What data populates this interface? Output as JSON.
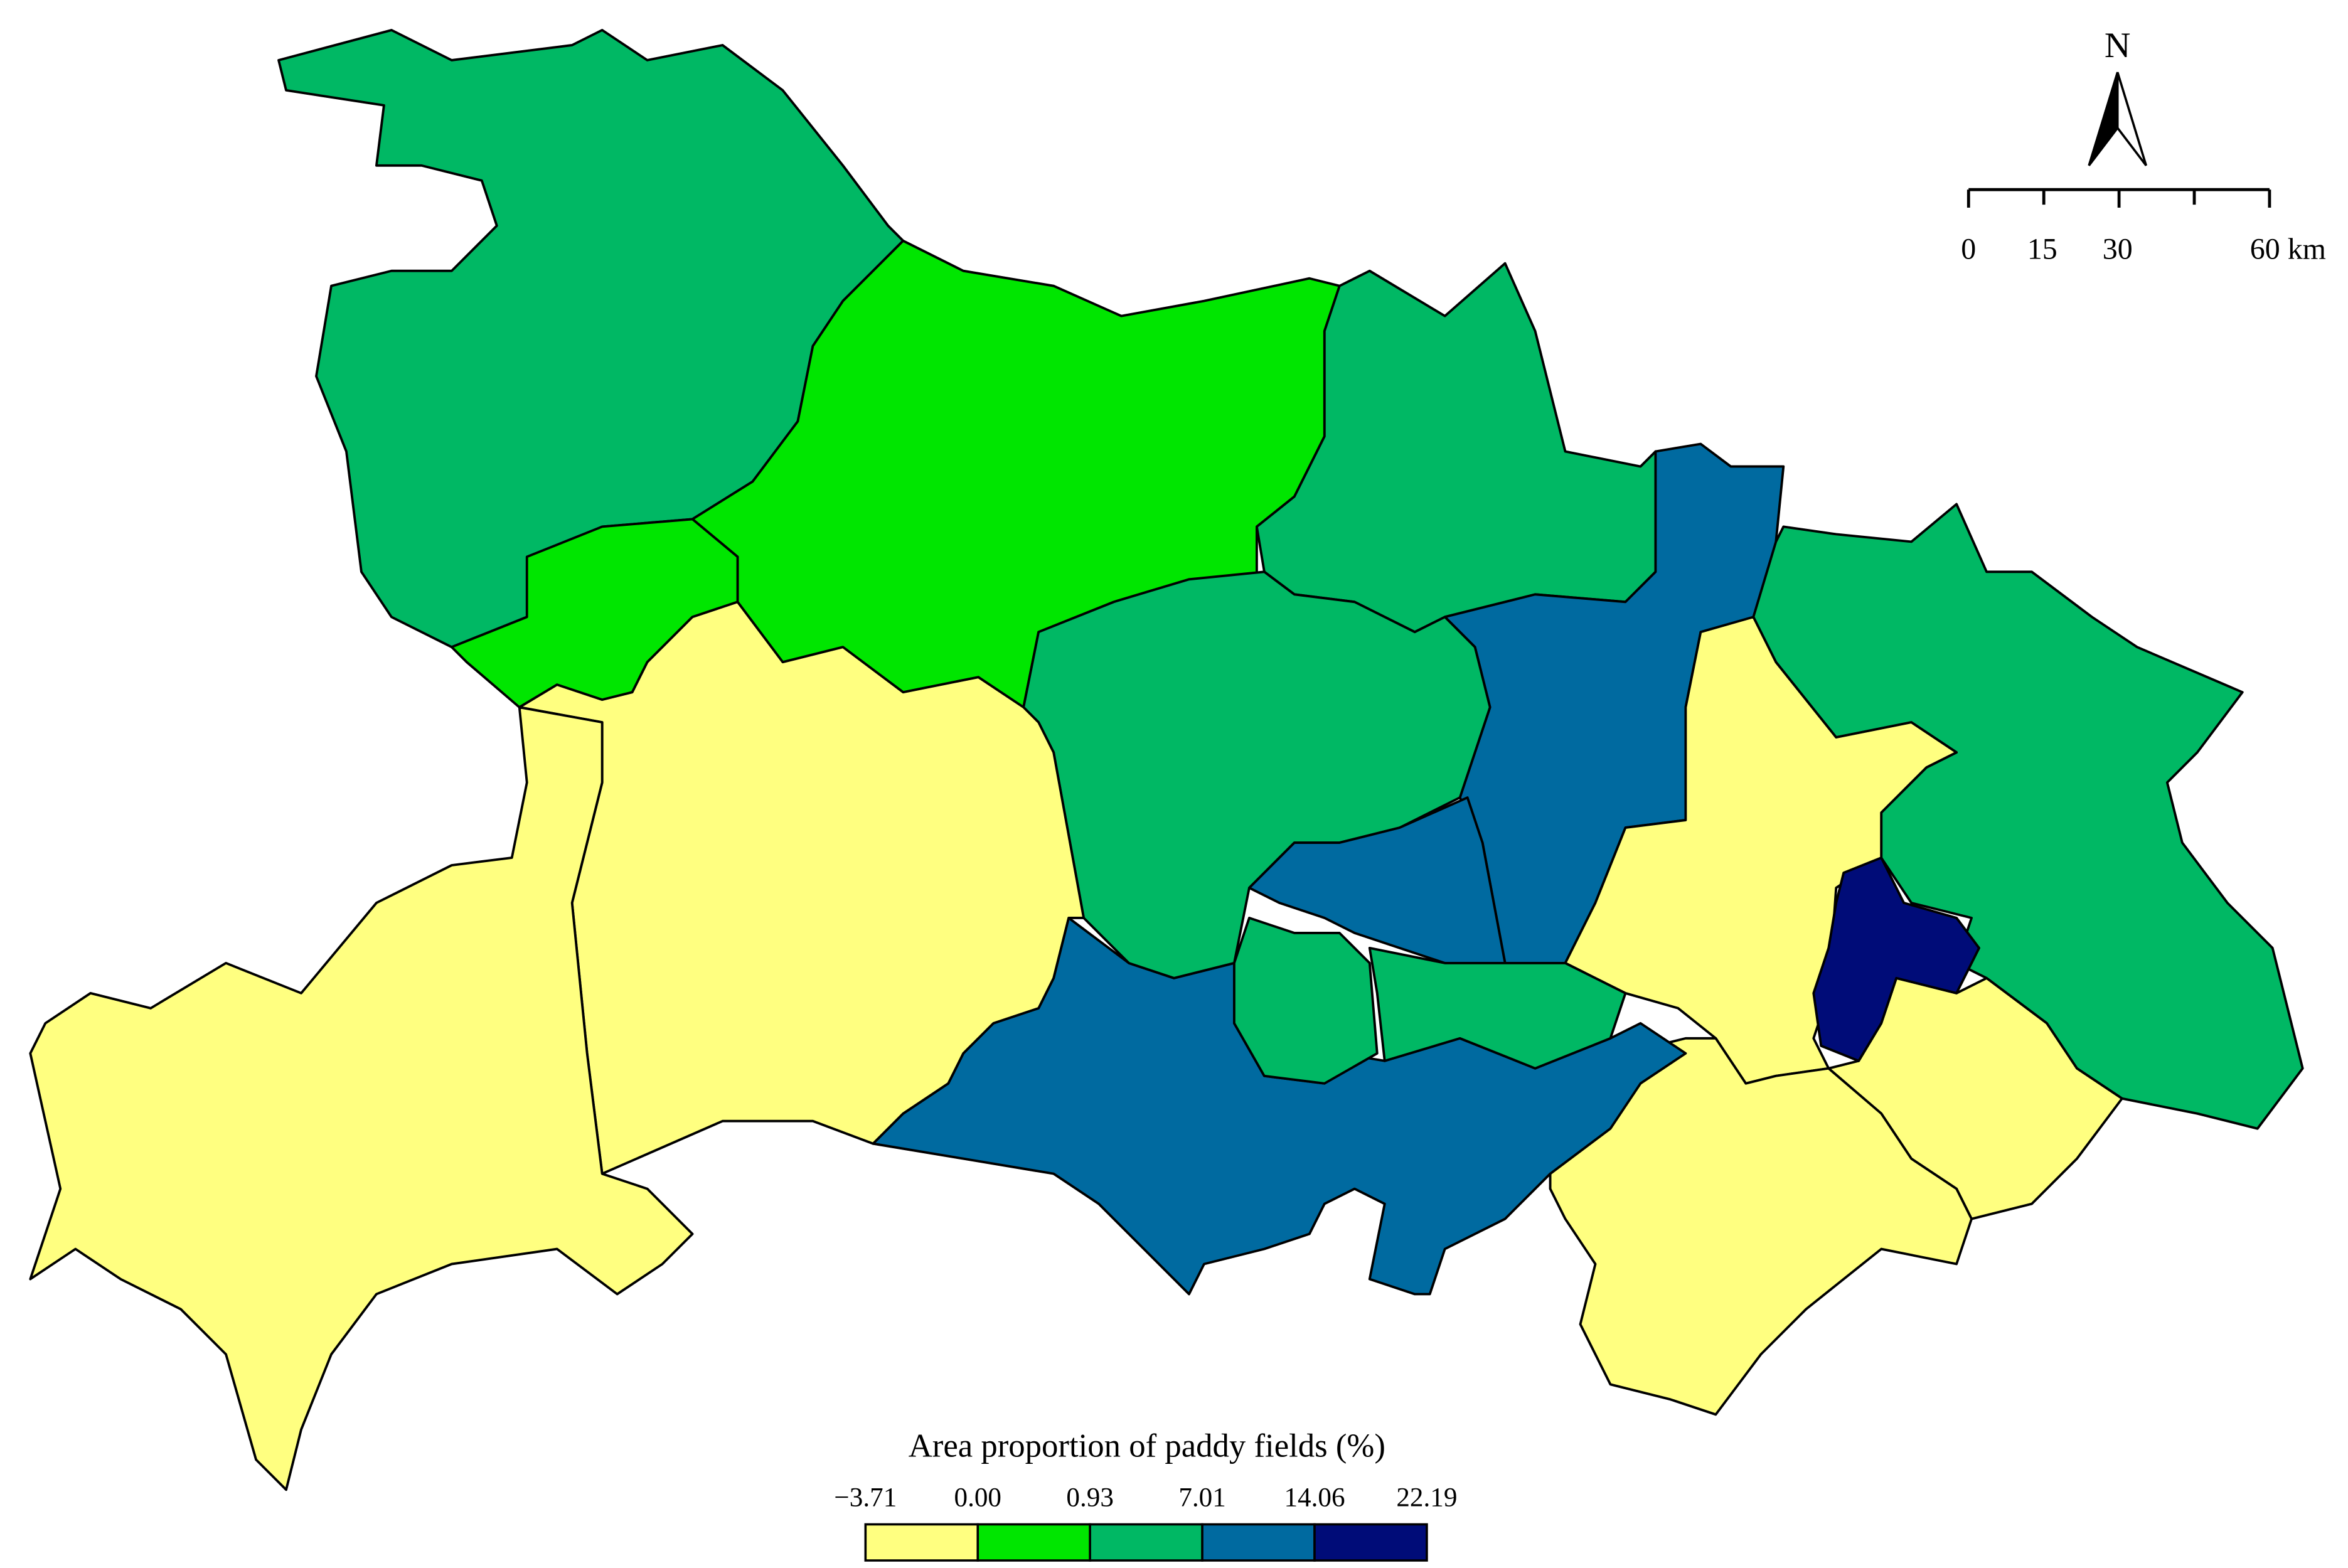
{
  "legend": {
    "title": "Area proportion of paddy fields (%)",
    "breaks": [
      "−3.71",
      "0.00",
      "0.93",
      "7.01",
      "14.06",
      "22.19"
    ],
    "colors": [
      "#ffff80",
      "#00e600",
      "#00b864",
      "#006aa0",
      "#000c78"
    ]
  },
  "scale_bar": {
    "labels": [
      "0",
      "15",
      "30",
      "60 km"
    ]
  },
  "north": "N"
}
